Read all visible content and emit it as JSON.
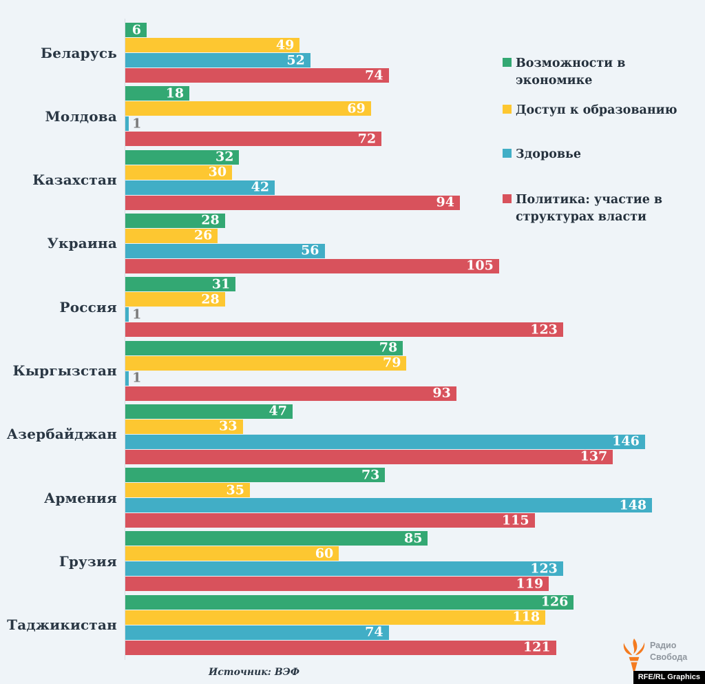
{
  "chart_data": {
    "type": "bar",
    "orientation": "horizontal",
    "title": "",
    "xlabel": "",
    "ylabel": "",
    "value_range": [
      0,
      148
    ],
    "grid": false,
    "legend_position": "top-right",
    "categories": [
      "Беларусь",
      "Молдова",
      "Казахстан",
      "Украина",
      "Россия",
      "Кыргызстан",
      "Азербайджан",
      "Армения",
      "Грузия",
      "Таджикистан"
    ],
    "series": [
      {
        "key": "economy",
        "name": "Возможности в экономике",
        "legend_lines": [
          "Возможности в",
          "экономике"
        ],
        "color": "#33a873",
        "values": [
          6,
          18,
          32,
          28,
          31,
          78,
          47,
          73,
          85,
          126
        ]
      },
      {
        "key": "education",
        "name": "Доступ к образованию",
        "legend_lines": [
          "Доступ к образованию"
        ],
        "color": "#fdc731",
        "values": [
          49,
          69,
          30,
          26,
          28,
          79,
          33,
          35,
          60,
          118
        ]
      },
      {
        "key": "health",
        "name": "Здоровье",
        "legend_lines": [
          "Здоровье"
        ],
        "color": "#41aec6",
        "values": [
          52,
          1,
          42,
          56,
          1,
          1,
          146,
          148,
          123,
          74
        ]
      },
      {
        "key": "politics",
        "name": "Политика: участие в структурах власти",
        "legend_lines": [
          "Политика: участие в",
          "структурах власти"
        ],
        "color": "#d8525c",
        "values": [
          74,
          72,
          94,
          105,
          123,
          93,
          137,
          115,
          119,
          121
        ]
      }
    ]
  },
  "source": "Источник: ВЭФ",
  "branding": {
    "radio_line1": "Радио",
    "radio_line2": "Свобода",
    "credit": "RFE/RL Graphics",
    "torch_color": "#f47b20"
  },
  "colors": {
    "background": "#eff4f8",
    "text": "#2a3744",
    "legend_text": "#25313d",
    "value_inside": "#ffffff",
    "value_outside": "#7b7b7b",
    "axis_line": "#d6dce1"
  }
}
